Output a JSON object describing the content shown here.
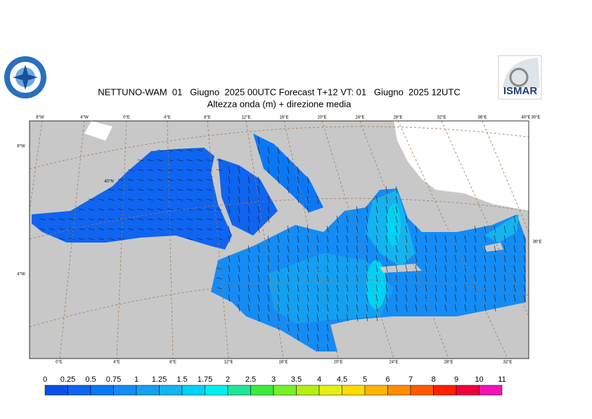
{
  "header": {
    "title": "NETTUNO-WAM  01   Giugno  2025 00UTC Forecast T+12 VT: 01   Giugno  2025 12UTC",
    "subtitle": "Altezza onda (m) + direzione media"
  },
  "logo": {
    "text": "ISMAR"
  },
  "map": {
    "top_labels": [
      "8°W",
      "4°W",
      "0°E",
      "4°E",
      "8°E",
      "12°E",
      "16°E",
      "20°E",
      "24°E",
      "28°E",
      "32°E",
      "36°E",
      "40°E",
      "30°E"
    ],
    "bottom_labels": [
      "0°E",
      "4°E",
      "8°E",
      "12°E",
      "16°E",
      "20°E",
      "24°E",
      "28°E",
      "32°E"
    ],
    "left_labels": [
      "8°W",
      "4°W"
    ],
    "right_labels": [
      "36°E"
    ],
    "inner_labels": [
      "40°N"
    ]
  },
  "legend": {
    "labels": [
      "0",
      "0.25",
      "0.5",
      "0.75",
      "1",
      "1.25",
      "1.5",
      "1.75",
      "2",
      "2.5",
      "3",
      "3.5",
      "4",
      "4.5",
      "5",
      "6",
      "7",
      "8",
      "9",
      "10",
      "11"
    ],
    "colors": [
      "#0a50e6",
      "#0f64f0",
      "#0a78f5",
      "#148cf5",
      "#14a0f0",
      "#14b4f0",
      "#00d2f5",
      "#00f0f0",
      "#1ee69a",
      "#3ceb3c",
      "#78f028",
      "#b4f014",
      "#e6f014",
      "#ffdc00",
      "#ffb400",
      "#ff8c00",
      "#ff5a00",
      "#ff1e00",
      "#f0003c",
      "#f014b4"
    ]
  }
}
